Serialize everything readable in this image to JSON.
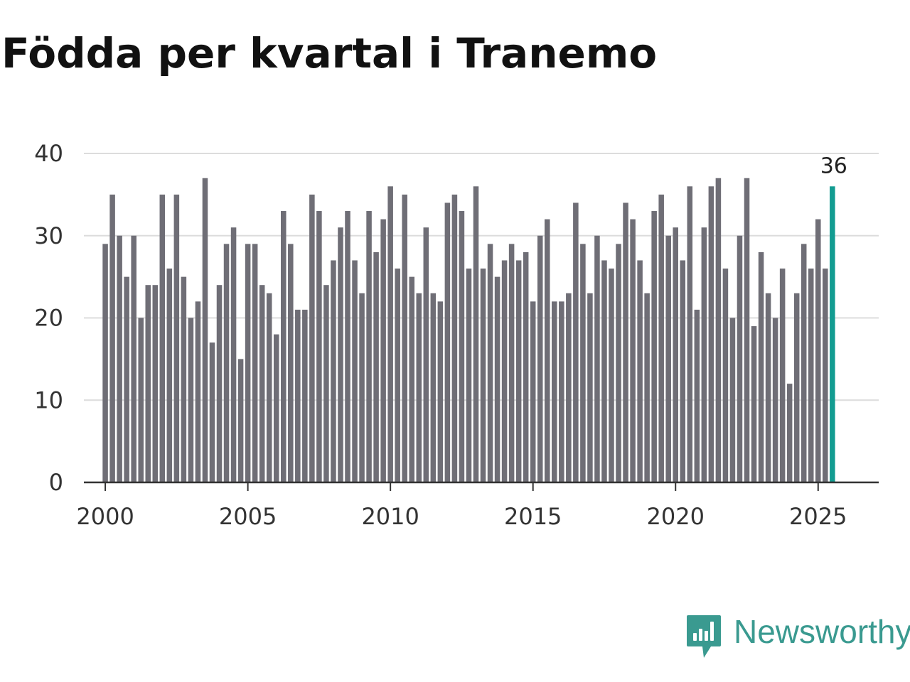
{
  "title": "Födda per kvartal i Tranemo",
  "brand": {
    "name": "Newsworthy",
    "icon": "newsworthy-logo-icon",
    "color": "#3a9a90"
  },
  "chart_data": {
    "type": "bar",
    "title": "Födda per kvartal i Tranemo",
    "xlabel": "",
    "ylabel": "",
    "ylim": [
      0,
      40
    ],
    "yticks": [
      0,
      10,
      20,
      30,
      40
    ],
    "xlim": [
      1999.25,
      2027.125
    ],
    "xticks": [
      2000,
      2005,
      2010,
      2015,
      2020,
      2025
    ],
    "start": 2000.0,
    "step": 0.25,
    "grid": true,
    "bar_color": "#6f6e76",
    "highlight_color": "#139c91",
    "highlight_last": true,
    "highlight_label": "36",
    "values": [
      29,
      35,
      30,
      25,
      30,
      20,
      24,
      24,
      35,
      26,
      35,
      25,
      20,
      22,
      37,
      17,
      24,
      29,
      31,
      15,
      29,
      29,
      24,
      23,
      18,
      33,
      29,
      21,
      21,
      35,
      33,
      24,
      27,
      31,
      33,
      27,
      23,
      33,
      28,
      32,
      36,
      26,
      35,
      25,
      23,
      31,
      23,
      22,
      34,
      35,
      33,
      26,
      36,
      26,
      29,
      25,
      27,
      29,
      27,
      28,
      22,
      30,
      32,
      22,
      22,
      23,
      34,
      29,
      23,
      30,
      27,
      26,
      29,
      34,
      32,
      27,
      23,
      33,
      35,
      30,
      31,
      27,
      36,
      21,
      31,
      36,
      37,
      26,
      20,
      30,
      37,
      19,
      28,
      23,
      20,
      26,
      12,
      23,
      29,
      26,
      32,
      26,
      36
    ]
  }
}
